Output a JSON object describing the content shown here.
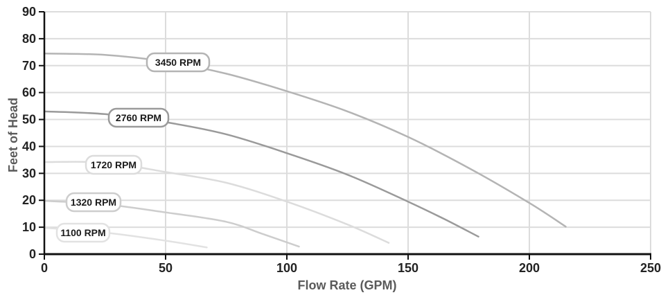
{
  "chart_data": {
    "type": "line",
    "title": "",
    "xlabel": "Flow Rate (GPM)",
    "ylabel": "Feet of Head",
    "xlim": [
      0,
      250
    ],
    "ylim": [
      0,
      90
    ],
    "x_ticks": [
      "0",
      "50",
      "100",
      "150",
      "200",
      "250"
    ],
    "y_ticks": [
      "0",
      "10",
      "20",
      "30",
      "40",
      "50",
      "60",
      "70",
      "80",
      "90"
    ],
    "grid": true,
    "series": [
      {
        "name": "3450 RPM",
        "color": "#b4b4b4",
        "x": [
          0,
          25,
          50,
          75,
          100,
          125,
          150,
          175,
          200,
          215
        ],
        "y": [
          74.5,
          74,
          71.5,
          67,
          60.5,
          53,
          43.5,
          32,
          19,
          10.2
        ]
      },
      {
        "name": "2760 RPM",
        "color": "#9a9a9a",
        "x": [
          0,
          25,
          50,
          75,
          100,
          125,
          150,
          165,
          179
        ],
        "y": [
          53,
          52,
          49,
          44.5,
          37.5,
          29.5,
          19.5,
          13,
          6.5
        ]
      },
      {
        "name": "1720 RPM",
        "color": "#dcdcdc",
        "x": [
          0,
          25,
          50,
          75,
          100,
          125,
          142
        ],
        "y": [
          34.2,
          34,
          30.5,
          26.5,
          19.5,
          11,
          4.2
        ]
      },
      {
        "name": "1320 RPM",
        "color": "#cdcdcd",
        "x": [
          0,
          25,
          50,
          75,
          90,
          105
        ],
        "y": [
          19.8,
          18.5,
          15.5,
          12,
          7.5,
          2.8
        ]
      },
      {
        "name": "1100 RPM",
        "color": "#e2e2e2",
        "x": [
          0,
          25,
          50,
          67
        ],
        "y": [
          9.8,
          8,
          5,
          2.5
        ]
      }
    ]
  }
}
